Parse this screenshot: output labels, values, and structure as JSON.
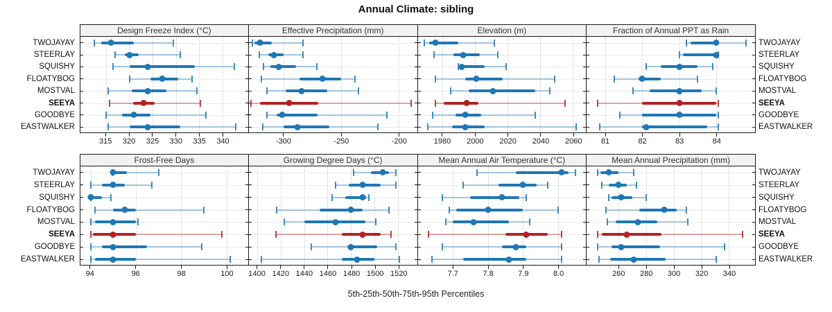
{
  "chart_data": {
    "type": "dot-whisker-percentile-trellis",
    "title": "Annual Climate: sibling",
    "xlabel": "5th-25th-50th-75th-95th Percentiles",
    "percentile_labels": [
      "5th",
      "25th",
      "50th",
      "75th",
      "95th"
    ],
    "stations": [
      "TWOJAYAY",
      "STEERLAY",
      "SQUISHY",
      "FLOATYBOG",
      "MOSTVAL",
      "SEEYA",
      "GOODBYE",
      "EASTWALKER"
    ],
    "highlighted_station": "SEEYA",
    "legend_position": "none",
    "grid": "dotted",
    "colors": {
      "normal": "#1f77b4",
      "highlight": "#b22222",
      "grid": "#c9c9c9",
      "header_bg": "#f2f2f2",
      "border": "#1a1a1a"
    },
    "panels": [
      {
        "title": "Design Freeze Index (°C)",
        "xlim": [
          309.5,
          345.5
        ],
        "ticks": [
          315,
          320,
          325,
          330,
          335,
          340
        ],
        "tick_labels": [
          "315",
          "320",
          "325",
          "330",
          "335",
          "340"
        ],
        "values": [
          [
            312.5,
            314,
            316,
            321,
            329.5
          ],
          [
            317,
            319,
            320,
            322,
            331
          ],
          [
            316.5,
            320,
            324,
            334,
            342.5
          ],
          [
            320,
            324.5,
            327,
            330.5,
            333.5
          ],
          [
            315.5,
            320.5,
            324,
            328,
            334.5
          ],
          [
            315.8,
            320.8,
            323,
            325.5,
            335.2
          ],
          [
            315,
            318.5,
            321,
            324.5,
            336.5
          ],
          [
            315.5,
            320,
            324,
            331,
            342.8
          ]
        ]
      },
      {
        "title": "Effective Precipitation (mm)",
        "xlim": [
          -330,
          -184
        ],
        "ticks": [
          -300,
          -250,
          -200
        ],
        "tick_labels": [
          "-300",
          "-250",
          "-200"
        ],
        "values": [
          [
            -327,
            -325,
            -320,
            -310,
            -283
          ],
          [
            -321,
            -313,
            -308,
            -300,
            -283
          ],
          [
            -317,
            -311,
            -304,
            -289,
            -271
          ],
          [
            -319,
            -286,
            -266,
            -250,
            -238
          ],
          [
            -314,
            -298,
            -284,
            -262,
            -235
          ],
          [
            -328,
            -320,
            -295,
            -270,
            -189
          ],
          [
            -314,
            -306,
            -301,
            -270,
            -210
          ],
          [
            -318,
            -300,
            -288,
            -260,
            -218
          ]
        ]
      },
      {
        "title": "Elevation (m)",
        "xlim": [
          1965,
          2068
        ],
        "ticks": [
          1980,
          2000,
          2020,
          2040,
          2060
        ],
        "tick_labels": [
          "1980",
          "2000",
          "2020",
          "2040",
          "2060"
        ],
        "values": [
          [
            1969,
            1972,
            1976,
            1990,
            2012
          ],
          [
            1975,
            1987,
            1993,
            2003,
            2014
          ],
          [
            1990,
            1991,
            1992,
            2006,
            2019
          ],
          [
            1976,
            1994,
            2001,
            2017,
            2049
          ],
          [
            1985,
            1996,
            2011,
            2037,
            2046
          ],
          [
            1976,
            1981,
            1995,
            2002,
            2055
          ],
          [
            1974,
            1988,
            1994,
            2004,
            2037
          ],
          [
            1971,
            1986,
            1994,
            2006,
            2062
          ]
        ]
      },
      {
        "title": "Fraction of Annual PPT as Rain",
        "xlim": [
          80.5,
          85.05
        ],
        "ticks": [
          81,
          82,
          83,
          84
        ],
        "tick_labels": [
          "81",
          "82",
          "83",
          "84"
        ],
        "values": [
          [
            83.2,
            83.3,
            84,
            84.05,
            84.8
          ],
          [
            83,
            83.1,
            84,
            84,
            84.05
          ],
          [
            82.1,
            82.5,
            83,
            83.5,
            83.9
          ],
          [
            81.25,
            81.9,
            82,
            82.5,
            83.5
          ],
          [
            81.75,
            82.2,
            83,
            83.6,
            84
          ],
          [
            80.8,
            82,
            83,
            84,
            84.05
          ],
          [
            81.4,
            82,
            83,
            84,
            84.05
          ],
          [
            80.85,
            82,
            82.1,
            83.75,
            84.05
          ]
        ]
      },
      {
        "title": "Frost-Free Days",
        "xlim": [
          93.55,
          100.95
        ],
        "ticks": [
          94,
          96,
          98,
          100
        ],
        "tick_labels": [
          "94",
          "96",
          "98",
          "100"
        ],
        "values": [
          [
            94.95,
            95,
            95,
            95.6,
            97
          ],
          [
            94,
            94.5,
            95,
            95.5,
            96.7
          ],
          [
            94,
            94,
            94,
            94.5,
            94.9
          ],
          [
            94.2,
            95,
            95.5,
            96,
            99
          ],
          [
            94,
            94.2,
            95,
            96,
            96.1
          ],
          [
            94,
            94.1,
            95,
            96,
            99.8
          ],
          [
            94,
            94.5,
            95,
            96.5,
            98.9
          ],
          [
            94,
            94.2,
            95,
            96,
            100.15
          ]
        ]
      },
      {
        "title": "Growing Degree Days (°C)",
        "xlim": [
          1393,
          1536
        ],
        "ticks": [
          1400,
          1420,
          1440,
          1460,
          1480,
          1500,
          1520
        ],
        "tick_labels": [
          "1400",
          "1420",
          "1440",
          "1460",
          "1480",
          "1500",
          "1520"
        ],
        "values": [
          [
            1482,
            1497,
            1507,
            1512,
            1518
          ],
          [
            1467,
            1478,
            1490,
            1505,
            1518
          ],
          [
            1464,
            1475,
            1490,
            1493,
            1495
          ],
          [
            1417,
            1453,
            1480,
            1490,
            1512
          ],
          [
            1423,
            1440,
            1467,
            1492,
            1501
          ],
          [
            1416,
            1472,
            1490,
            1505,
            1514
          ],
          [
            1446,
            1477,
            1480,
            1502,
            1518
          ],
          [
            1404,
            1472,
            1485,
            1500,
            1521
          ]
        ]
      },
      {
        "title": "Mean Annual Air Temperature (°C)",
        "xlim": [
          7.6,
          8.08
        ],
        "ticks": [
          7.7,
          7.8,
          7.9,
          8.0
        ],
        "tick_labels": [
          "7.7",
          "7.8",
          "7.9",
          "8.0"
        ],
        "values": [
          [
            7.77,
            7.88,
            8.01,
            8.03,
            8.05
          ],
          [
            7.73,
            7.83,
            7.9,
            7.94,
            7.97
          ],
          [
            7.67,
            7.75,
            7.84,
            7.89,
            7.91
          ],
          [
            7.69,
            7.71,
            7.8,
            7.9,
            8.0
          ],
          [
            7.68,
            7.7,
            7.76,
            7.86,
            7.92
          ],
          [
            7.63,
            7.85,
            7.91,
            7.97,
            8.01
          ],
          [
            7.67,
            7.84,
            7.88,
            7.91,
            8.01
          ],
          [
            7.64,
            7.73,
            7.86,
            7.91,
            8.01
          ]
        ]
      },
      {
        "title": "Mean Annual Precipitation (mm)",
        "xlim": [
          237,
          359
        ],
        "ticks": [
          260,
          280,
          300,
          320,
          340
        ],
        "tick_labels": [
          "260",
          "280",
          "300",
          "320",
          "340"
        ],
        "values": [
          [
            245,
            247,
            253,
            260,
            271
          ],
          [
            248,
            253,
            260,
            266,
            273
          ],
          [
            253,
            255,
            262,
            270,
            280
          ],
          [
            251,
            275,
            293,
            302,
            309
          ],
          [
            252,
            258,
            274,
            288,
            310
          ],
          [
            245,
            248,
            266,
            291,
            350
          ],
          [
            245,
            255,
            262,
            290,
            337
          ],
          [
            246,
            254,
            271,
            294,
            331
          ]
        ]
      }
    ]
  }
}
